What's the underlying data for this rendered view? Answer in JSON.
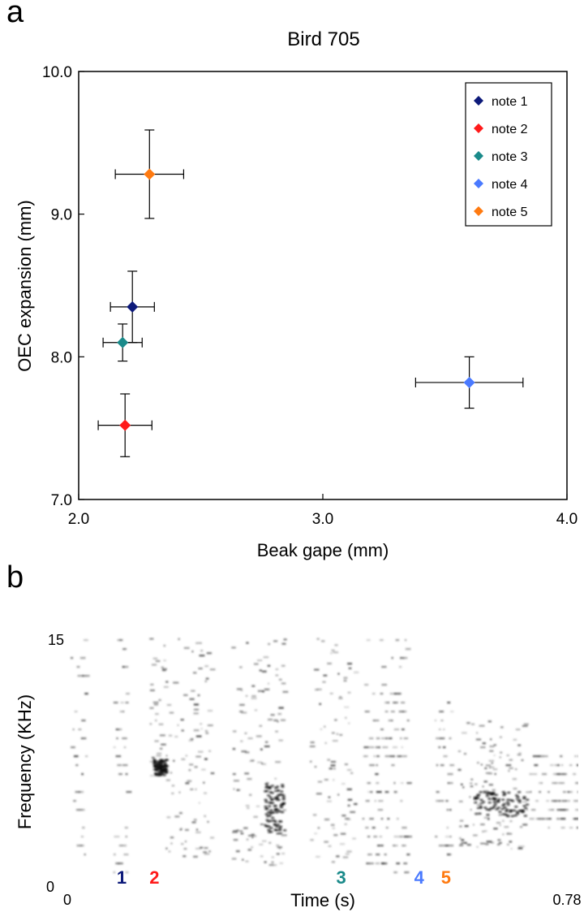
{
  "panels": {
    "a": {
      "letter": "a"
    },
    "b": {
      "letter": "b"
    }
  },
  "chart_data": [
    {
      "panel": "a",
      "type": "scatter",
      "title": "Bird 705",
      "xlabel": "Beak gape (mm)",
      "ylabel": "OEC expansion (mm)",
      "xlim": [
        2.0,
        4.0
      ],
      "ylim": [
        7.0,
        10.0
      ],
      "xticks": [
        "2.0",
        "3.0",
        "4.0"
      ],
      "yticks": [
        "7.0",
        "8.0",
        "9.0",
        "10.0"
      ],
      "grid": false,
      "legend_position": "top-right",
      "series": [
        {
          "name": "note 1",
          "color": "#0d1a7a",
          "x": 2.22,
          "y": 8.35,
          "xerr": 0.09,
          "yerr": 0.25
        },
        {
          "name": "note 2",
          "color": "#ff1a1a",
          "x": 2.19,
          "y": 7.52,
          "xerr": 0.11,
          "yerr": 0.22
        },
        {
          "name": "note 3",
          "color": "#1a8a8a",
          "x": 2.18,
          "y": 8.1,
          "xerr": 0.08,
          "yerr": 0.13
        },
        {
          "name": "note 4",
          "color": "#4a7aff",
          "x": 3.6,
          "y": 7.82,
          "xerr": 0.22,
          "yerr": 0.18
        },
        {
          "name": "note 5",
          "color": "#ff7a10",
          "x": 2.29,
          "y": 9.28,
          "xerr": 0.14,
          "yerr": 0.31
        }
      ]
    },
    {
      "panel": "b",
      "type": "heatmap",
      "xlabel": "Time (s)",
      "ylabel": "Frequency (KHz)",
      "xlim": [
        0,
        0.78
      ],
      "ylim": [
        0,
        15
      ],
      "xticks": [
        "0",
        "0.78"
      ],
      "yticks": [
        "0",
        "15"
      ],
      "note_labels": [
        {
          "label": "1",
          "color": "#0d1a7a",
          "t": 0.083
        },
        {
          "label": "2",
          "color": "#ff1a1a",
          "t": 0.133
        },
        {
          "label": "3",
          "color": "#1a8a8a",
          "t": 0.418
        },
        {
          "label": "4",
          "color": "#4a7aff",
          "t": 0.537
        },
        {
          "label": "5",
          "color": "#ff7a10",
          "t": 0.578
        }
      ]
    }
  ]
}
